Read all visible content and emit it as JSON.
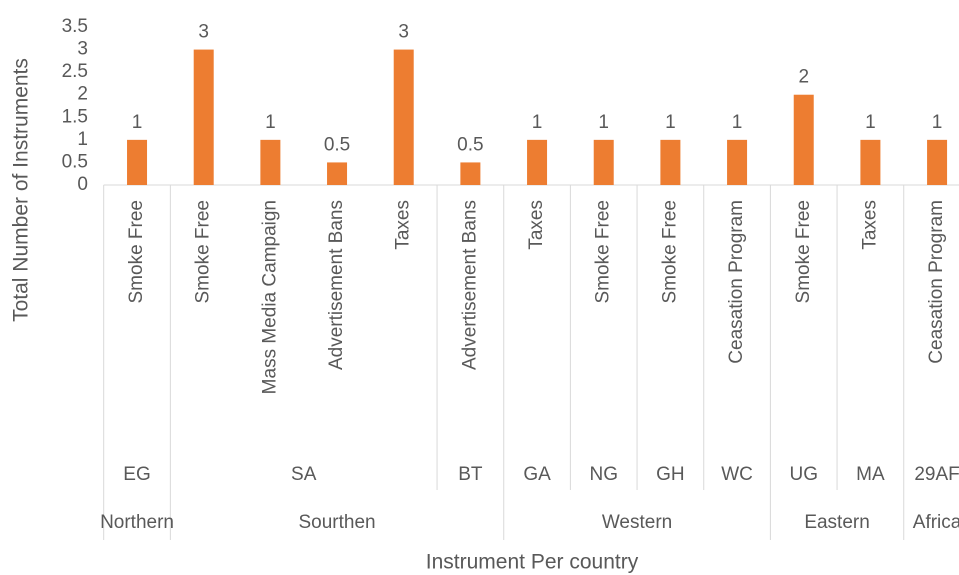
{
  "chart_data": {
    "type": "bar",
    "x_label": "Instrument Per country",
    "y_label": "Total Number of Instruments",
    "categories": [
      "Smoke Free",
      "Smoke Free",
      "Mass Media Campaign",
      "Advertisement Bans",
      "Taxes",
      "Advertisement Bans",
      "Taxes",
      "Smoke Free",
      "Smoke Free",
      "Ceasation Program",
      "Smoke Free",
      "Taxes",
      "Ceasation Program"
    ],
    "country": [
      "EG",
      "SA",
      "SA",
      "SA",
      "SA",
      "BT",
      "GA",
      "NG",
      "GH",
      "WC",
      "UG",
      "MA",
      "29AF"
    ],
    "region": [
      "Northern",
      "Sourthen",
      "Sourthen",
      "Sourthen",
      "Sourthen",
      "Sourthen",
      "Western",
      "Western",
      "Western",
      "Western",
      "Eastern",
      "Eastern",
      "Africa"
    ],
    "values": [
      1,
      3,
      1,
      0.5,
      3,
      0.5,
      1,
      1,
      1,
      1,
      2,
      1,
      1
    ],
    "color": "#ed7d31",
    "ylim": [
      0,
      3.5
    ],
    "yticks": [
      0,
      0.5,
      1,
      1.5,
      2,
      2.5,
      3,
      3.5
    ],
    "grid": false
  }
}
